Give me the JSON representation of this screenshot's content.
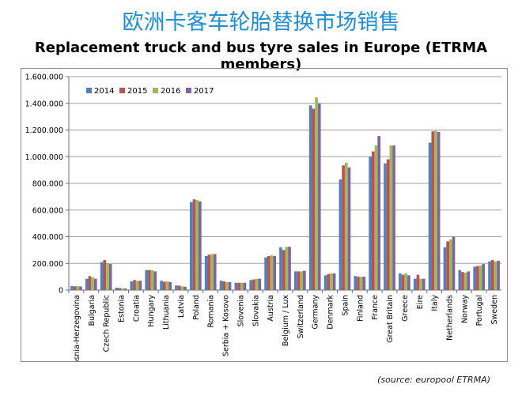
{
  "header": {
    "title_cn": "欧洲卡客车轮胎替换市场销售",
    "title_en": "Replacement truck and bus tyre sales in Europe (ETRMA members)"
  },
  "footer": {
    "source": "(source: europool ETRMA)"
  },
  "colors": {
    "2014": "#4f81bd",
    "2015": "#c0504d",
    "2016": "#9bbb59",
    "2017": "#8064a2"
  },
  "chart_data": {
    "type": "bar",
    "title": "",
    "xlabel": "",
    "ylabel": "",
    "ylim": [
      0,
      1600000
    ],
    "yticks": [
      0,
      200000,
      400000,
      600000,
      800000,
      1000000,
      1200000,
      1400000,
      1600000
    ],
    "ytick_labels": [
      "0",
      "200.000",
      "400.000",
      "600.000",
      "800.000",
      "1.000.000",
      "1.200.000",
      "1.400.000",
      "1.600.000"
    ],
    "grid": true,
    "legend": "top-left",
    "categories": [
      "Bosnia-Herzegovina",
      "Bulgaria",
      "Czech Republic",
      "Estonia",
      "Croatia",
      "Hungary",
      "Lithuania",
      "Latvia",
      "Poland",
      "Romania",
      "Serbia + Kosovo",
      "Slovenia",
      "Slovakia",
      "Austria",
      "Belgium / Lux",
      "Switzerland",
      "Germany",
      "Denmark",
      "Spain",
      "Finland",
      "France",
      "Great Britain",
      "Greece",
      "Eire",
      "Italy",
      "Netherlands",
      "Norway",
      "Portugal",
      "Sweden"
    ],
    "series": [
      {
        "name": "2014",
        "values": [
          30000,
          85000,
          210000,
          18000,
          65000,
          150000,
          70000,
          35000,
          660000,
          255000,
          70000,
          55000,
          75000,
          245000,
          320000,
          140000,
          1385000,
          110000,
          830000,
          105000,
          1000000,
          950000,
          125000,
          85000,
          1105000,
          320000,
          150000,
          175000,
          215000
        ]
      },
      {
        "name": "2015",
        "values": [
          28000,
          105000,
          225000,
          15000,
          75000,
          150000,
          62000,
          33000,
          680000,
          265000,
          65000,
          55000,
          80000,
          255000,
          300000,
          140000,
          1360000,
          120000,
          935000,
          100000,
          1040000,
          980000,
          115000,
          115000,
          1190000,
          365000,
          135000,
          180000,
          225000
        ]
      },
      {
        "name": "2016",
        "values": [
          29000,
          95000,
          200000,
          14000,
          70000,
          150000,
          65000,
          28000,
          675000,
          270000,
          60000,
          55000,
          85000,
          260000,
          325000,
          140000,
          1445000,
          125000,
          955000,
          100000,
          1085000,
          1085000,
          125000,
          85000,
          1195000,
          380000,
          130000,
          185000,
          215000
        ]
      },
      {
        "name": "2017",
        "values": [
          27000,
          85000,
          195000,
          12000,
          70000,
          140000,
          60000,
          25000,
          665000,
          270000,
          60000,
          55000,
          85000,
          255000,
          325000,
          145000,
          1400000,
          125000,
          920000,
          100000,
          1155000,
          1085000,
          110000,
          85000,
          1185000,
          400000,
          140000,
          195000,
          220000
        ]
      }
    ]
  }
}
